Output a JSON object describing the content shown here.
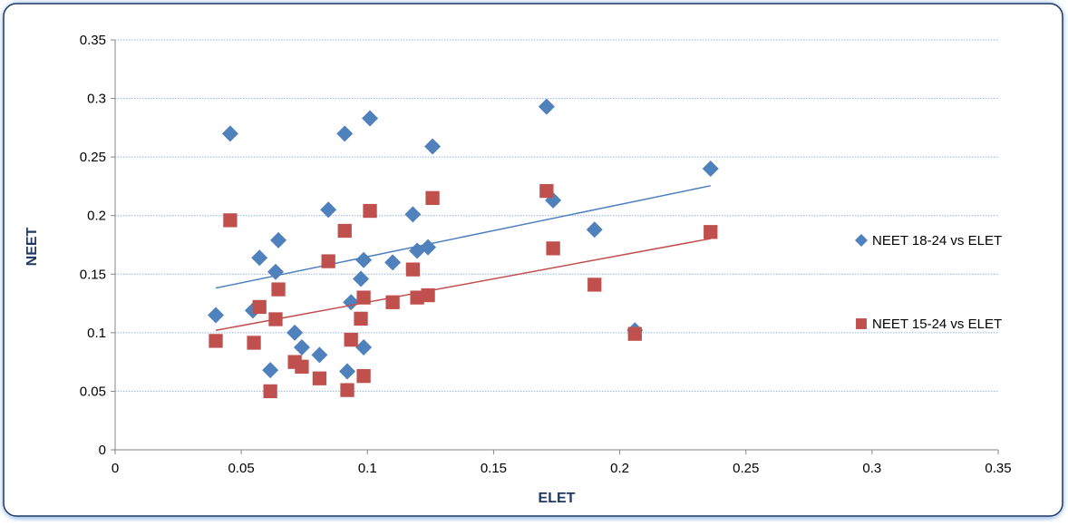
{
  "chart_data": {
    "type": "scatter",
    "x_label": "ELET",
    "y_label": "NEET",
    "xlim": [
      0,
      0.35
    ],
    "xticks": [
      0,
      0.05,
      0.1,
      0.15,
      0.2,
      0.25,
      0.3,
      0.35
    ],
    "ylim": [
      0,
      0.35
    ],
    "yticks": [
      0,
      0.05,
      0.1,
      0.15,
      0.2,
      0.25,
      0.3,
      0.35
    ],
    "grid": true,
    "legend": "right",
    "trendline": true,
    "series": [
      {
        "name": "NEET 18-24 vs ELET",
        "color": "#4f81bd",
        "marker": "diamond",
        "x": [
          0.0399,
          0.0456,
          0.0572,
          0.0546,
          0.0647,
          0.0636,
          0.0615,
          0.0712,
          0.074,
          0.081,
          0.0845,
          0.091,
          0.092,
          0.0935,
          0.0974,
          0.0985,
          0.0985,
          0.101,
          0.11,
          0.118,
          0.1197,
          0.124,
          0.1258,
          0.171,
          0.1736,
          0.19,
          0.206,
          0.236
        ],
        "values": [
          0.115,
          0.27,
          0.164,
          0.119,
          0.179,
          0.152,
          0.068,
          0.1,
          0.0875,
          0.081,
          0.205,
          0.27,
          0.067,
          0.126,
          0.146,
          0.162,
          0.0875,
          0.283,
          0.16,
          0.201,
          0.17,
          0.173,
          0.259,
          0.293,
          0.213,
          0.188,
          0.102,
          0.24
        ]
      },
      {
        "name": "NEET 15-24 vs ELET",
        "color": "#c0504d",
        "marker": "square",
        "x": [
          0.0399,
          0.0456,
          0.055,
          0.0572,
          0.0636,
          0.0647,
          0.0615,
          0.0712,
          0.074,
          0.081,
          0.0845,
          0.091,
          0.092,
          0.0935,
          0.0974,
          0.0985,
          0.0985,
          0.101,
          0.11,
          0.118,
          0.1197,
          0.124,
          0.1258,
          0.171,
          0.1736,
          0.19,
          0.206,
          0.236
        ],
        "values": [
          0.093,
          0.196,
          0.0914,
          0.122,
          0.1115,
          0.137,
          0.05,
          0.075,
          0.071,
          0.061,
          0.161,
          0.187,
          0.051,
          0.094,
          0.112,
          0.13,
          0.063,
          0.204,
          0.126,
          0.154,
          0.13,
          0.132,
          0.215,
          0.221,
          0.172,
          0.141,
          0.099,
          0.186
        ]
      }
    ]
  }
}
